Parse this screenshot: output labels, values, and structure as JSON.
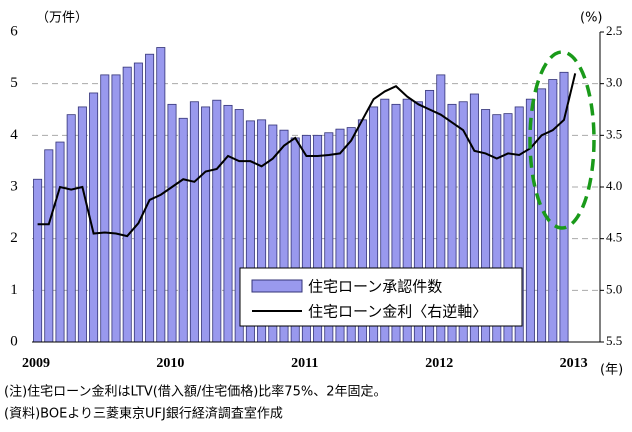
{
  "chart_data": {
    "type": "bar-line",
    "y_label": "（万件）",
    "y2_label": "(%)",
    "x_label": "(年)",
    "categories": [
      "2009",
      null,
      null,
      null,
      null,
      null,
      null,
      null,
      null,
      null,
      null,
      null,
      "2010",
      null,
      null,
      null,
      null,
      null,
      null,
      null,
      null,
      null,
      null,
      null,
      "2011",
      null,
      null,
      null,
      null,
      null,
      null,
      null,
      null,
      null,
      null,
      null,
      "2012",
      null,
      null,
      null,
      null,
      null,
      null,
      null,
      null,
      null,
      null,
      null,
      "2013"
    ],
    "series": [
      {
        "name": "住宅ローン承認件数",
        "color": "#9999ee",
        "values": [
          3.15,
          3.72,
          3.87,
          4.4,
          4.55,
          4.82,
          5.17,
          5.17,
          5.32,
          5.4,
          5.57,
          5.7,
          4.6,
          4.33,
          4.65,
          4.55,
          4.68,
          4.58,
          4.5,
          4.28,
          4.3,
          4.2,
          4.1,
          3.95,
          4.0,
          4.0,
          4.05,
          4.12,
          4.15,
          4.3,
          4.55,
          4.7,
          4.6,
          4.7,
          4.65,
          4.87,
          5.17,
          4.6,
          4.65,
          4.8,
          4.5,
          4.4,
          4.42,
          4.55,
          4.7,
          4.9,
          5.08,
          5.22,
          null
        ]
      },
      {
        "name": "住宅ローン金利〈右逆軸〉",
        "color": "#000000",
        "axis": "y2",
        "values": [
          4.36,
          4.36,
          4.0,
          4.025,
          4.0,
          4.45,
          4.44,
          4.45,
          4.475,
          4.35,
          4.125,
          4.075,
          4.0,
          3.925,
          3.95,
          3.85,
          3.825,
          3.7,
          3.75,
          3.75,
          3.8,
          3.725,
          3.6,
          3.525,
          3.7,
          3.7,
          3.69,
          3.675,
          3.55,
          3.35,
          3.15,
          3.075,
          3.025,
          3.125,
          3.2,
          3.25,
          3.3,
          3.375,
          3.45,
          3.65,
          3.675,
          3.725,
          3.675,
          3.69,
          3.625,
          3.5,
          3.45,
          3.35,
          2.9
        ]
      }
    ],
    "ylim": [
      0,
      6
    ],
    "yticks": [
      0,
      1,
      2,
      3,
      4,
      5,
      6
    ],
    "y2lim": [
      5.5,
      2.5
    ],
    "y2ticks": [
      2.5,
      {
        "value": 3,
        "label": "3.0"
      },
      3.5,
      {
        "value": 4,
        "label": "4.0"
      },
      4.5,
      {
        "value": 5,
        "label": "5.0"
      },
      5.5
    ],
    "y2_inverted": true,
    "grid": true,
    "legend": "lower right",
    "notes": [
      "(注)住宅ローン金利はLTV(借入額/住宅価格)比率75%、2年固定。",
      "(資料)BOEより三菱東京UFJ銀行経済調査室作成"
    ]
  }
}
